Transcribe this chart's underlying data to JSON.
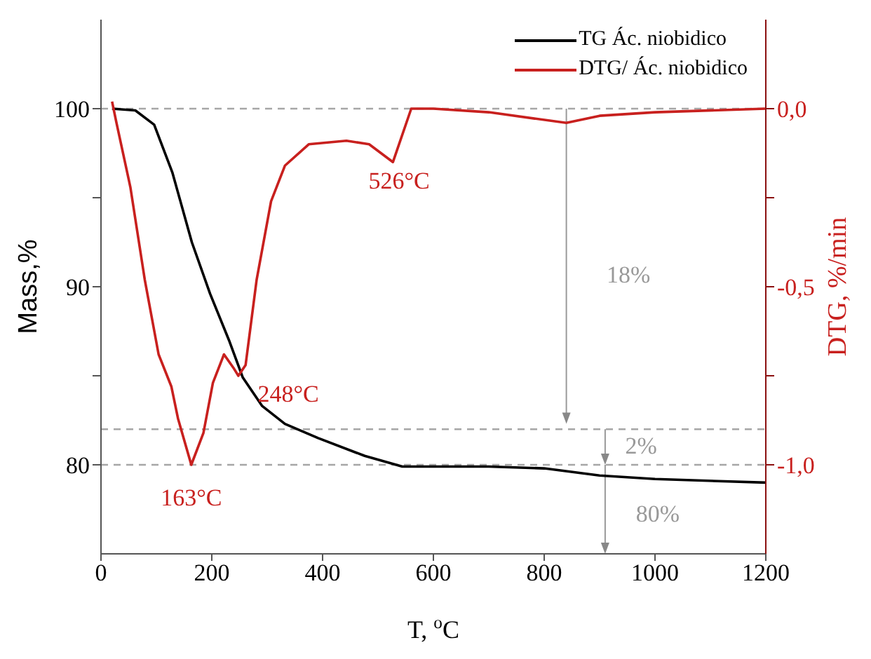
{
  "chart_data": {
    "type": "line",
    "xlabel": "T, $^{o}$C",
    "ylabel": "Mass,%",
    "y2label": "DTG, %/min",
    "xlim": [
      0,
      1200
    ],
    "xticks": [
      0,
      200,
      400,
      600,
      800,
      1000,
      1200
    ],
    "ylim": [
      75,
      105
    ],
    "yticks": [
      80,
      {
        "value": 85,
        "label": null
      },
      90,
      {
        "value": 95,
        "label": null
      },
      100
    ],
    "y2lim": [
      -1.25,
      0.25
    ],
    "y2ticks": [
      {
        "value": -1.0,
        "label": "-1,0"
      },
      {
        "value": -0.75,
        "label": null
      },
      {
        "value": -0.5,
        "label": "-0,5"
      },
      {
        "value": -0.25,
        "label": null
      },
      {
        "value": 0.0,
        "label": "0,0"
      }
    ],
    "legend": "top right",
    "line_style": "solid",
    "marker": "none",
    "series": [
      {
        "name": "TG Ác. niobidico",
        "color": "#000000",
        "x": [
          20,
          62,
          96,
          129,
          164,
          197,
          231,
          256,
          291,
          332,
          392,
          476,
          544,
          700,
          800,
          900,
          1000,
          1200
        ],
        "values": [
          100,
          99.9,
          99.1,
          96.4,
          92.5,
          89.6,
          87.0,
          84.9,
          83.3,
          82.3,
          81.5,
          80.5,
          79.9,
          79.9,
          79.8,
          79.4,
          79.2,
          79.0
        ]
      },
      {
        "name": "DTG/ Ác. niobidico",
        "color": "#c8201e",
        "axis": "y2",
        "x": [
          20,
          28,
          53,
          79,
          104,
          127,
          139,
          163,
          185,
          202,
          222,
          240,
          248,
          261,
          281,
          307,
          332,
          375,
          443,
          484,
          527,
          560,
          600,
          700,
          840,
          900,
          1000,
          1200
        ],
        "values": [
          0.02,
          -0.04,
          -0.22,
          -0.48,
          -0.69,
          -0.78,
          -0.87,
          -1.0,
          -0.91,
          -0.77,
          -0.69,
          -0.73,
          -0.75,
          -0.72,
          -0.48,
          -0.26,
          -0.16,
          -0.1,
          -0.09,
          -0.1,
          -0.15,
          0.0,
          0.0,
          -0.01,
          -0.04,
          -0.02,
          -0.01,
          0.0
        ]
      }
    ],
    "ref_lines": [
      {
        "axis": "y",
        "value": 100,
        "color": "#a6a6a6",
        "line_style": "dashed"
      },
      {
        "axis": "y",
        "value": 82,
        "color": "#a6a6a6",
        "line_style": "dashed"
      },
      {
        "axis": "y",
        "value": 80,
        "color": "#a6a6a6",
        "line_style": "dashed"
      }
    ],
    "annotations": [
      "163°C",
      "248°C",
      "526°C",
      "18%",
      "2%",
      "80%"
    ]
  }
}
